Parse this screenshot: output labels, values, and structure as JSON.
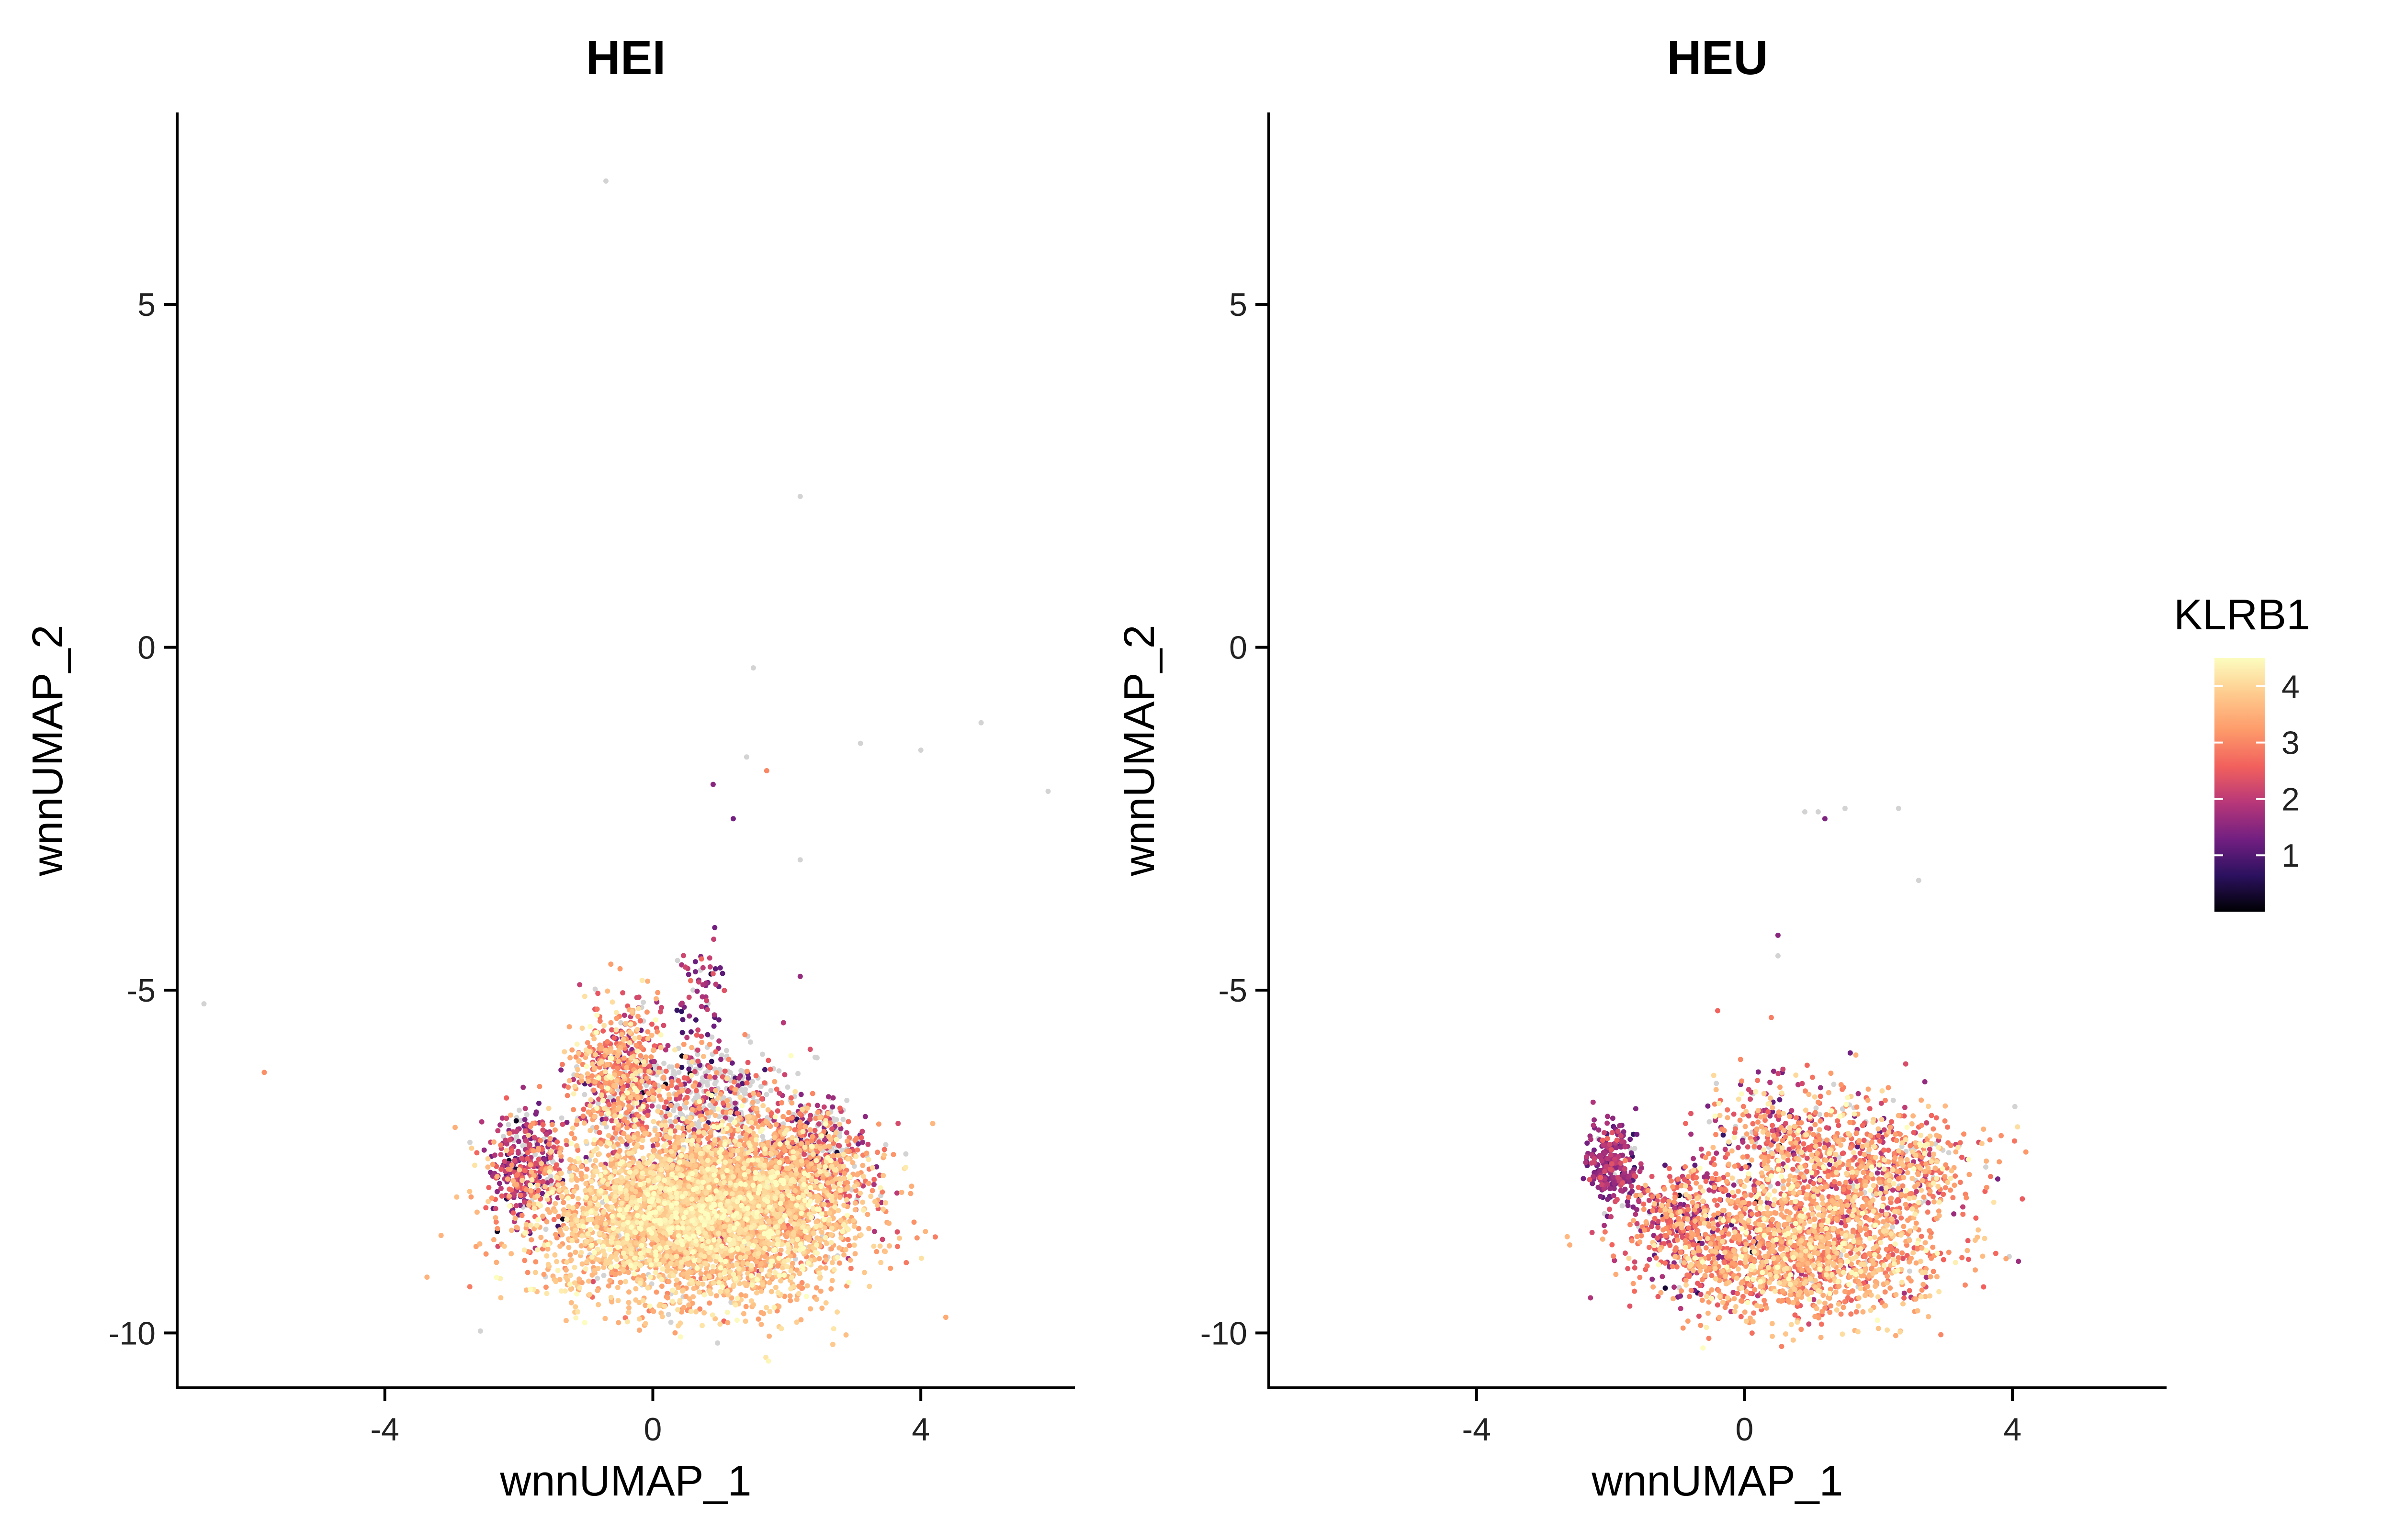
{
  "chart_data": [
    {
      "type": "scatter",
      "title": "HEI",
      "xlabel": "wnnUMAP_1",
      "ylabel": "wnnUMAP_2",
      "xlim": [
        -7.1,
        6.3
      ],
      "ylim": [
        -10.8,
        7.8
      ],
      "xticks": [
        -4,
        0,
        4
      ],
      "yticks": [
        -10,
        -5,
        0,
        5
      ],
      "xtick_labels": [
        "-4",
        "0",
        "4"
      ],
      "ytick_labels": [
        "-10",
        "-5",
        "0",
        "5"
      ],
      "grid": false,
      "outlier_points": [
        {
          "x": -0.7,
          "y": 6.8,
          "value": 0
        },
        {
          "x": 2.2,
          "y": 2.2,
          "value": 0
        },
        {
          "x": 1.5,
          "y": -0.3,
          "value": 0
        },
        {
          "x": 3.1,
          "y": -1.4,
          "value": 0
        },
        {
          "x": 4.0,
          "y": -1.5,
          "value": 0
        },
        {
          "x": 4.9,
          "y": -1.1,
          "value": 0
        },
        {
          "x": 5.9,
          "y": -2.1,
          "value": 0
        },
        {
          "x": -6.7,
          "y": -5.2,
          "value": 0
        },
        {
          "x": -5.8,
          "y": -6.2,
          "value": 3.1
        },
        {
          "x": 1.7,
          "y": -1.8,
          "value": 3.0
        },
        {
          "x": 0.9,
          "y": -2.0,
          "value": 1.5
        },
        {
          "x": 1.2,
          "y": -2.5,
          "value": 1.3
        },
        {
          "x": 1.4,
          "y": -1.6,
          "value": 0
        },
        {
          "x": 2.2,
          "y": -3.1,
          "value": 0
        },
        {
          "x": 2.2,
          "y": -4.8,
          "value": 1.6
        }
      ],
      "clusters": [
        {
          "cx": 0.6,
          "cy": -8.3,
          "sx": 1.1,
          "sy": 0.6,
          "n": 4200,
          "mean": 3.7,
          "sd": 0.45,
          "grey": 0.04
        },
        {
          "cx": 1.6,
          "cy": -7.8,
          "sx": 0.8,
          "sy": 0.5,
          "n": 1400,
          "mean": 3.2,
          "sd": 0.7,
          "grey": 0.12
        },
        {
          "cx": -0.5,
          "cy": -6.3,
          "sx": 0.35,
          "sy": 0.55,
          "n": 600,
          "mean": 3.0,
          "sd": 0.8,
          "grey": 0.1
        },
        {
          "cx": -1.9,
          "cy": -7.6,
          "sx": 0.3,
          "sy": 0.4,
          "n": 350,
          "mean": 1.9,
          "sd": 0.6,
          "grey": 0.15
        },
        {
          "cx": 0.8,
          "cy": -6.6,
          "sx": 0.6,
          "sy": 0.45,
          "n": 500,
          "mean": 2.5,
          "sd": 1.0,
          "grey": 0.55
        },
        {
          "cx": 0.7,
          "cy": -5.0,
          "sx": 0.2,
          "sy": 0.45,
          "n": 60,
          "mean": 1.6,
          "sd": 0.5,
          "grey": 0.2
        },
        {
          "cx": 2.4,
          "cy": -7.2,
          "sx": 0.35,
          "sy": 0.3,
          "n": 220,
          "mean": 2.1,
          "sd": 0.9,
          "grey": 0.45
        }
      ]
    },
    {
      "type": "scatter",
      "title": "HEU",
      "xlabel": "wnnUMAP_1",
      "ylabel": "wnnUMAP_2",
      "xlim": [
        -7.1,
        6.3
      ],
      "ylim": [
        -10.8,
        7.8
      ],
      "xticks": [
        -4,
        0,
        4
      ],
      "yticks": [
        -10,
        -5,
        0,
        5
      ],
      "xtick_labels": [
        "-4",
        "0",
        "4"
      ],
      "ytick_labels": [
        "-10",
        "-5",
        "0",
        "5"
      ],
      "grid": false,
      "outlier_points": [
        {
          "x": 0.9,
          "y": -2.4,
          "value": 0
        },
        {
          "x": 1.1,
          "y": -2.4,
          "value": 0
        },
        {
          "x": 1.5,
          "y": -2.35,
          "value": 0
        },
        {
          "x": 2.3,
          "y": -2.35,
          "value": 0
        },
        {
          "x": 2.6,
          "y": -3.4,
          "value": 0
        },
        {
          "x": 1.2,
          "y": -2.5,
          "value": 1.4
        },
        {
          "x": 0.5,
          "y": -4.2,
          "value": 1.5
        },
        {
          "x": 0.5,
          "y": -4.5,
          "value": 0
        },
        {
          "x": -0.4,
          "y": -5.3,
          "value": 2.6
        },
        {
          "x": 0.4,
          "y": -5.4,
          "value": 2.9
        },
        {
          "x": -0.8,
          "y": -6.8,
          "value": 2.4
        }
      ],
      "clusters": [
        {
          "cx": 0.9,
          "cy": -8.8,
          "sx": 1.0,
          "sy": 0.5,
          "n": 1500,
          "mean": 3.3,
          "sd": 0.6,
          "grey": 0.02
        },
        {
          "cx": 1.5,
          "cy": -7.6,
          "sx": 0.9,
          "sy": 0.5,
          "n": 700,
          "mean": 3.0,
          "sd": 0.8,
          "grey": 0.05
        },
        {
          "cx": -0.8,
          "cy": -8.4,
          "sx": 0.5,
          "sy": 0.45,
          "n": 420,
          "mean": 2.3,
          "sd": 0.8,
          "grey": 0.03
        },
        {
          "cx": -2.0,
          "cy": -7.5,
          "sx": 0.2,
          "sy": 0.3,
          "n": 260,
          "mean": 1.6,
          "sd": 0.4,
          "grey": 0.03
        },
        {
          "cx": 0.5,
          "cy": -7.0,
          "sx": 0.6,
          "sy": 0.4,
          "n": 220,
          "mean": 2.6,
          "sd": 0.9,
          "grey": 0.12
        },
        {
          "cx": 2.6,
          "cy": -7.6,
          "sx": 0.35,
          "sy": 0.3,
          "n": 160,
          "mean": 3.1,
          "sd": 0.7,
          "grey": 0.15
        }
      ]
    }
  ],
  "legend": {
    "title": "KLRB1",
    "placement": "right",
    "min": 0,
    "max": 4.5,
    "ticks": [
      1,
      2,
      3,
      4
    ],
    "tick_labels": [
      "1",
      "2",
      "3",
      "4"
    ],
    "colormap": "magma",
    "color_stops": [
      "#000004",
      "#2c115f",
      "#721f81",
      "#b73779",
      "#f1605d",
      "#fd9a6a",
      "#feca8d",
      "#fcfdbf"
    ]
  },
  "colors": {
    "zero_expression": "#d3d3d3",
    "axis": "#000000",
    "text": "#000000"
  }
}
